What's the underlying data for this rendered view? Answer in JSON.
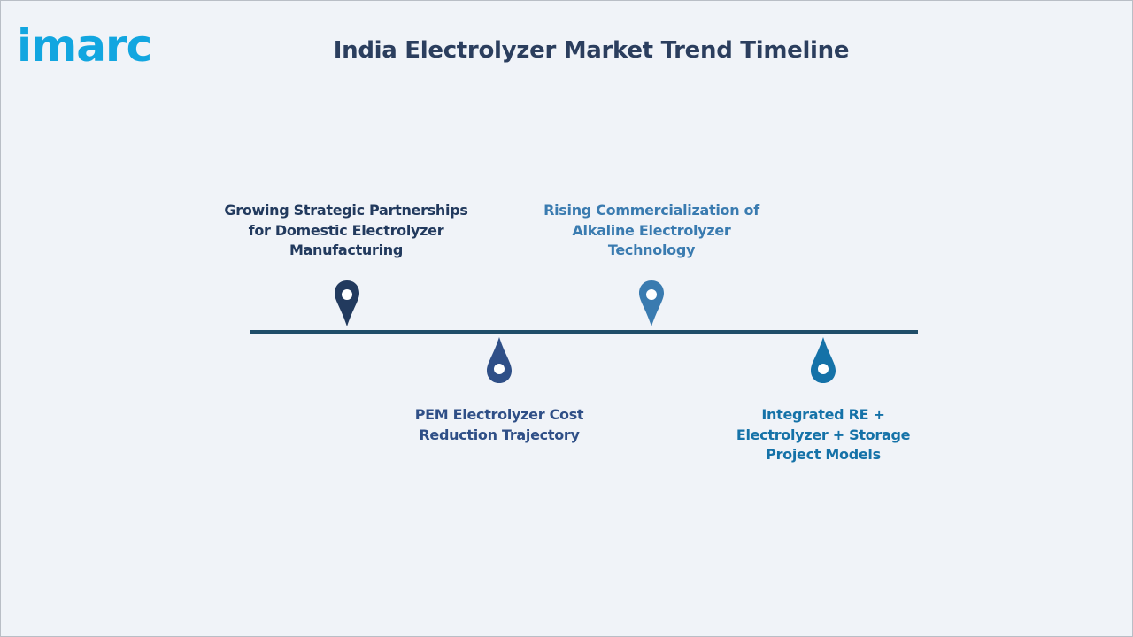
{
  "logo": {
    "text": "imarc",
    "color": "#12a6e0"
  },
  "title": "India Electrolyzer Market Trend Timeline",
  "timeline": {
    "line_color": "#1f4d69",
    "milestones": [
      {
        "label": "Growing Strategic Partnerships for Domestic Electrolyzer Manufacturing",
        "lines": [
          "Growing Strategic Partnerships",
          "for Domestic Electrolyzer",
          "Manufacturing"
        ],
        "position": "above",
        "color": "#223a5e",
        "icon": "map-pin-icon"
      },
      {
        "label": "PEM Electrolyzer Cost Reduction Trajectory",
        "lines": [
          "PEM Electrolyzer Cost",
          "Reduction Trajectory"
        ],
        "position": "below",
        "color": "#2f4f87",
        "icon": "drop-pin-icon"
      },
      {
        "label": "Rising Commercialization of Alkaline Electrolyzer Technology",
        "lines": [
          "Rising Commercialization of",
          "Alkaline Electrolyzer",
          "Technology"
        ],
        "position": "above",
        "color": "#3a7bb0",
        "icon": "map-pin-icon"
      },
      {
        "label": "Integrated RE + Electrolyzer + Storage Project Models",
        "lines": [
          "Integrated RE +",
          "Electrolyzer + Storage",
          "Project Models"
        ],
        "position": "below",
        "color": "#1572a8",
        "icon": "drop-pin-icon"
      }
    ]
  }
}
